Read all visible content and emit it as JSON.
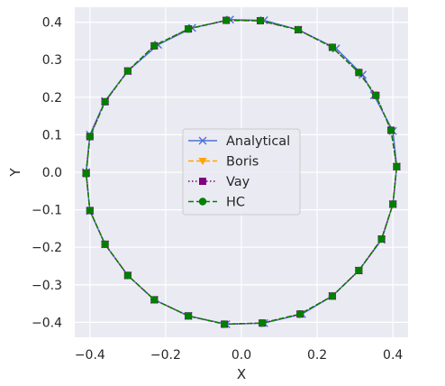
{
  "chart_data": {
    "type": "line",
    "title": "",
    "xlabel": "X",
    "ylabel": "Y",
    "xlim": [
      -0.44,
      0.44
    ],
    "ylim": [
      -0.44,
      0.44
    ],
    "xticks": [
      -0.4,
      -0.2,
      0.0,
      0.2,
      0.4
    ],
    "xtick_labels": [
      "−0.4",
      "−0.2",
      "0.0",
      "0.2",
      "0.4"
    ],
    "yticks": [
      0.4,
      0.3,
      0.2,
      0.1,
      0.0,
      -0.1,
      -0.2,
      -0.3,
      -0.4
    ],
    "ytick_labels": [
      "0.4",
      "0.3",
      "0.2",
      "0.1",
      "0.0",
      "−0.1",
      "−0.2",
      "−0.3",
      "−0.4"
    ],
    "grid": true,
    "legend_position": "center",
    "background": "#eaeaf2",
    "series": [
      {
        "name": "Analytical",
        "color": "#4c72d8",
        "marker": "x",
        "linestyle": "solid",
        "x": [
          -0.41,
          -0.4,
          -0.36,
          -0.3,
          -0.22,
          -0.13,
          -0.03,
          0.06,
          0.15,
          0.25,
          0.32,
          0.35,
          0.4,
          0.41,
          0.4,
          0.37,
          0.31,
          0.24,
          0.16,
          0.06,
          -0.04,
          -0.14,
          -0.23,
          -0.3,
          -0.36,
          -0.4,
          -0.41
        ],
        "y": [
          0.0,
          0.1,
          0.19,
          0.27,
          0.34,
          0.385,
          0.407,
          0.405,
          0.38,
          0.33,
          0.26,
          0.205,
          0.11,
          0.015,
          -0.085,
          -0.18,
          -0.262,
          -0.33,
          -0.378,
          -0.402,
          -0.405,
          -0.383,
          -0.34,
          -0.275,
          -0.192,
          -0.103,
          0.0
        ]
      },
      {
        "name": "Boris",
        "color": "#ffa500",
        "marker": "triangle-down",
        "linestyle": "dashed",
        "x": [
          -0.41,
          -0.4,
          -0.36,
          -0.3,
          -0.23,
          -0.14,
          -0.04,
          0.05,
          0.15,
          0.24,
          0.31,
          0.355,
          0.395,
          0.41,
          0.4,
          0.37,
          0.31,
          0.24,
          0.155,
          0.055,
          -0.045,
          -0.14,
          -0.23,
          -0.3,
          -0.36,
          -0.4,
          -0.41
        ],
        "y": [
          -0.003,
          0.095,
          0.188,
          0.27,
          0.337,
          0.382,
          0.405,
          0.404,
          0.38,
          0.333,
          0.266,
          0.205,
          0.112,
          0.015,
          -0.085,
          -0.178,
          -0.262,
          -0.33,
          -0.378,
          -0.402,
          -0.405,
          -0.383,
          -0.34,
          -0.275,
          -0.192,
          -0.102,
          -0.003
        ]
      },
      {
        "name": "Vay",
        "color": "#800080",
        "marker": "square",
        "linestyle": "dotted",
        "x": [
          -0.41,
          -0.4,
          -0.36,
          -0.3,
          -0.23,
          -0.14,
          -0.04,
          0.05,
          0.15,
          0.24,
          0.31,
          0.355,
          0.395,
          0.41,
          0.4,
          0.37,
          0.31,
          0.24,
          0.155,
          0.055,
          -0.045,
          -0.14,
          -0.23,
          -0.3,
          -0.36,
          -0.4,
          -0.41
        ],
        "y": [
          -0.003,
          0.095,
          0.188,
          0.27,
          0.337,
          0.382,
          0.405,
          0.404,
          0.38,
          0.333,
          0.266,
          0.205,
          0.112,
          0.015,
          -0.085,
          -0.178,
          -0.262,
          -0.33,
          -0.378,
          -0.402,
          -0.405,
          -0.383,
          -0.34,
          -0.275,
          -0.192,
          -0.102,
          -0.003
        ]
      },
      {
        "name": "HC",
        "color": "#008000",
        "marker": "circle",
        "linestyle": "dashed",
        "x": [
          -0.41,
          -0.4,
          -0.36,
          -0.3,
          -0.23,
          -0.14,
          -0.04,
          0.05,
          0.15,
          0.24,
          0.31,
          0.355,
          0.395,
          0.41,
          0.4,
          0.37,
          0.31,
          0.24,
          0.155,
          0.055,
          -0.045,
          -0.14,
          -0.23,
          -0.3,
          -0.36,
          -0.4,
          -0.41
        ],
        "y": [
          -0.003,
          0.095,
          0.188,
          0.27,
          0.337,
          0.382,
          0.405,
          0.404,
          0.38,
          0.333,
          0.266,
          0.205,
          0.112,
          0.015,
          -0.085,
          -0.178,
          -0.262,
          -0.33,
          -0.378,
          -0.402,
          -0.405,
          -0.383,
          -0.34,
          -0.275,
          -0.192,
          -0.102,
          -0.003
        ]
      }
    ]
  }
}
